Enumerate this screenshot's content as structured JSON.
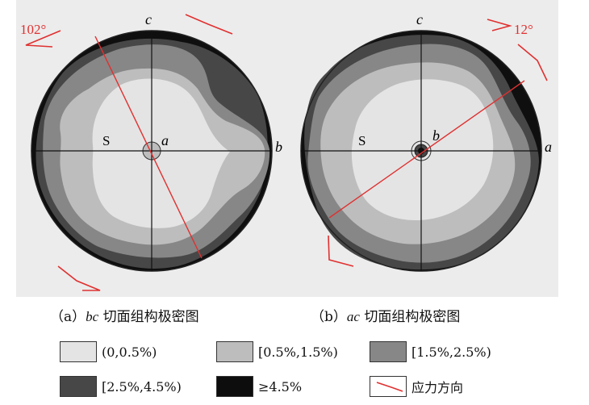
{
  "panel_a": {
    "angle_label": "102°",
    "axis_top": "c",
    "axis_right": "b",
    "center_label": "a",
    "s_label": "S",
    "caption_prefix": "（a）",
    "caption_axes": "bc",
    "caption_text": " 切面组构极密图"
  },
  "panel_b": {
    "angle_label": "12°",
    "axis_top": "c",
    "axis_right": "a",
    "center_label": "b",
    "s_label": "S",
    "caption_prefix": "（b）",
    "caption_axes": "ac",
    "caption_text": " 切面组构极密图"
  },
  "legend": [
    {
      "label": "(0,0.5%)",
      "color": "#e4e4e4"
    },
    {
      "label": "[0.5%,1.5%)",
      "color": "#bdbdbd"
    },
    {
      "label": "[1.5%,2.5%)",
      "color": "#878787"
    },
    {
      "label": "[2.5%,4.5%)",
      "color": "#474747"
    },
    {
      "label": "≥4.5%",
      "color": "#0d0d0d"
    },
    {
      "label": "应力方向",
      "color": "#e03030"
    }
  ]
}
